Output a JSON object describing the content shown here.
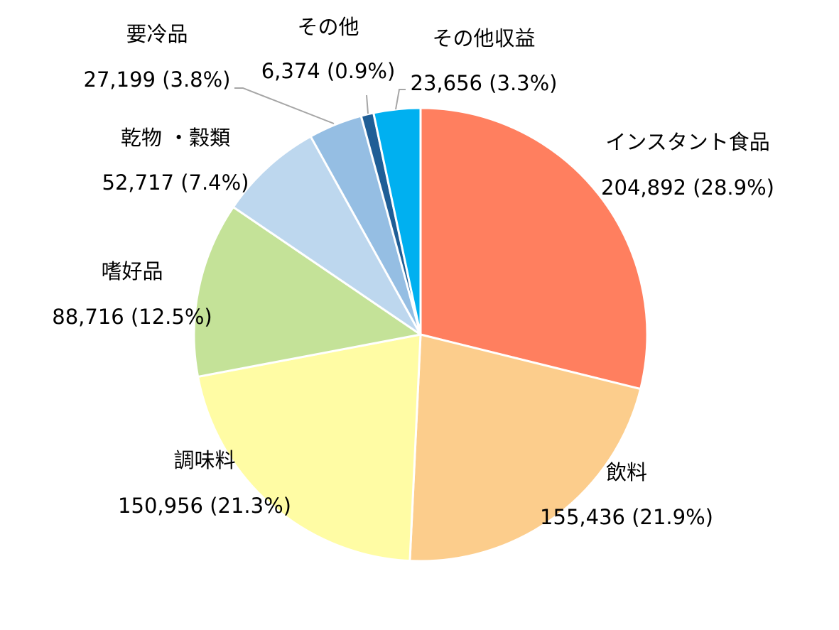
{
  "chart_data": {
    "type": "pie",
    "title": "",
    "start_angle_deg": 0,
    "direction": "clockwise",
    "slices": [
      {
        "name": "インスタント食品",
        "value": 204892,
        "value_label": "204,892 (28.9%)",
        "percent": 28.9,
        "color": "#FF7F5F"
      },
      {
        "name": "飲料",
        "value": 155436,
        "value_label": "155,436 (21.9%)",
        "percent": 21.9,
        "color": "#FCCD8C"
      },
      {
        "name": "調味料",
        "value": 150956,
        "value_label": "150,956 (21.3%)",
        "percent": 21.3,
        "color": "#FFFCA4"
      },
      {
        "name": "嗜好品",
        "value": 88716,
        "value_label": "88,716 (12.5%)",
        "percent": 12.5,
        "color": "#C4E298"
      },
      {
        "name": "乾物 ・穀類",
        "value": 52717,
        "value_label": "52,717 (7.4%)",
        "percent": 7.4,
        "color": "#BDD7EE"
      },
      {
        "name": "要冷品",
        "value": 27199,
        "value_label": "27,199 (3.8%)",
        "percent": 3.8,
        "color": "#95BEE3"
      },
      {
        "name": "その他",
        "value": 6374,
        "value_label": "6,374 (0.9%)",
        "percent": 0.9,
        "color": "#1F5E96"
      },
      {
        "name": "その他収益",
        "value": 23656,
        "value_label": "23,656 (3.3%)",
        "percent": 3.3,
        "color": "#00B0F0"
      }
    ],
    "legend": "none",
    "data_labels": "outside"
  }
}
